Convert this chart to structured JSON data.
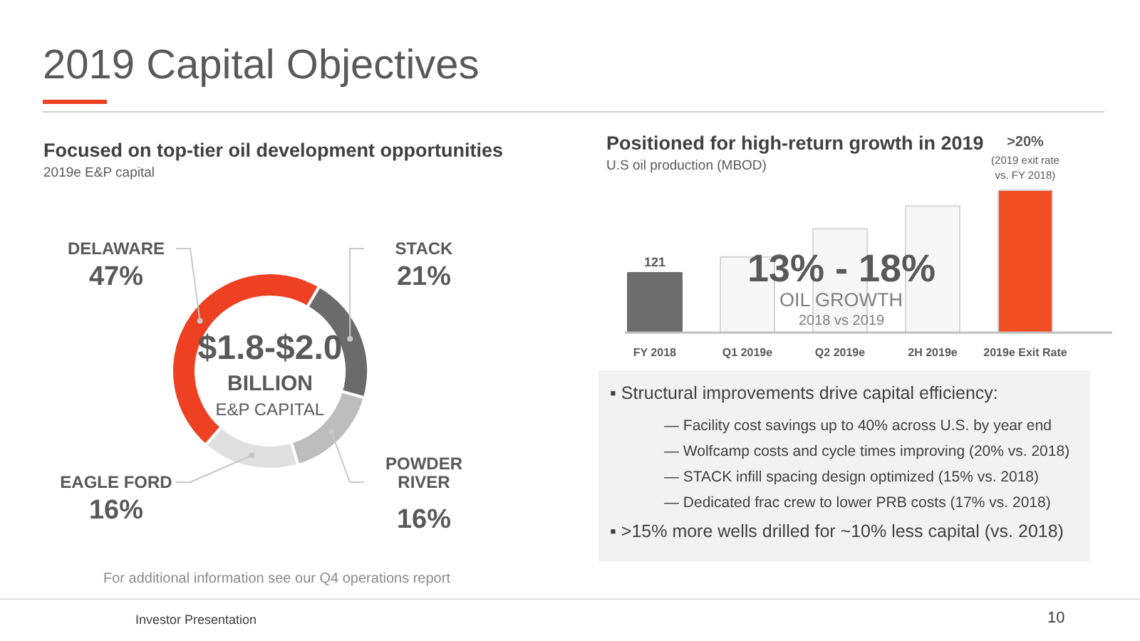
{
  "chart_data": [
    {
      "type": "other",
      "title": "2019 Capital Objectives",
      "annotations": [
        "Investor Presentation",
        "10"
      ]
    },
    {
      "type": "donut",
      "title": "Focused on top-tier oil development opportunities",
      "subtitle": "2019e E&P capital",
      "categories": [
        "DELAWARE",
        "STACK",
        "POWDER RIVER",
        "EAGLE FORD"
      ],
      "values": [
        47,
        21,
        16,
        16
      ],
      "colors": [
        "#ee4023",
        "#6b6b6b",
        "#bdbdbd",
        "#e0e0e0"
      ],
      "value_labels": [
        "47%",
        "21%",
        "16%",
        "16%"
      ],
      "annotations": [
        "$1.8-$2.0",
        "BILLION",
        "E&P CAPITAL",
        "For additional information see our Q4 operations report"
      ]
    },
    {
      "type": "bar",
      "title": "Positioned for high-return growth in 2019",
      "subtitle": "U.S oil production (MBOD)",
      "categories": [
        "FY 2018",
        "Q1 2019e",
        "Q2 2019e",
        "2H 2019e",
        "2019e Exit Rate"
      ],
      "values": [
        121,
        153,
        210,
        256,
        288
      ],
      "tick_labels": "x",
      "colors": [
        "#6d6d6d",
        "#f7f7f7",
        "#f7f7f7",
        "#f7f7f7",
        "#f04e23"
      ],
      "value_labels": [
        "121",
        null,
        null,
        null,
        null
      ],
      "annotations": [
        ">20%",
        "(2019 exit rate vs. FY 2018)",
        "13% - 18%",
        "OIL GROWTH",
        "2018 vs 2019"
      ]
    },
    {
      "type": "other",
      "annotations": [
        "▪ Structural improvements drive capital efficiency:",
        "— Facility cost savings up to 40% across U.S. by year end",
        "— Wolfcamp costs and cycle times improving (20% vs. 2018)",
        "— STACK infill spacing design optimized (15% vs. 2018)",
        "— Dedicated frac crew to lower PRB costs (17% vs. 2018)",
        "▪ >15% more wells drilled for ~10% less capital (vs. 2018)"
      ]
    }
  ]
}
